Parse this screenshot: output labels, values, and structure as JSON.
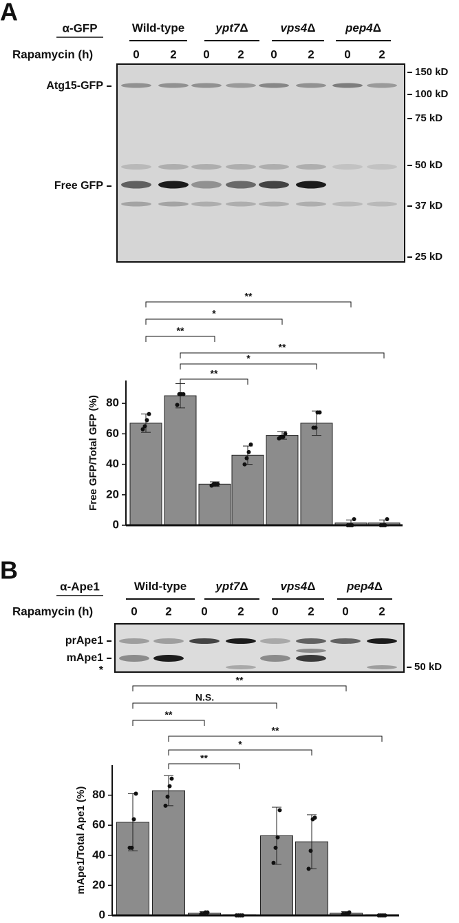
{
  "panels": [
    {
      "label": "A",
      "antibody": "α-GFP",
      "strains": [
        {
          "name": "Wild-type"
        },
        {
          "name": "ypt7",
          "suffix": "Δ"
        },
        {
          "name": "vps4",
          "suffix": "Δ"
        },
        {
          "name": "pep4",
          "suffix": "Δ"
        }
      ],
      "rapamycin_label": "Rapamycin (h)",
      "times": [
        0,
        2,
        0,
        2,
        0,
        2,
        0,
        2
      ],
      "bands": [
        "Atg15-GFP",
        "Free GFP"
      ],
      "markers": [
        "150 kD",
        "100 kD",
        "75 kD",
        "50 kD",
        "37 kD",
        "25 kD"
      ],
      "significance": [
        "**",
        "*",
        "**",
        "**",
        "*",
        "**"
      ]
    },
    {
      "label": "B",
      "antibody": "α-Ape1",
      "strains": [
        {
          "name": "Wild-type"
        },
        {
          "name": "ypt7",
          "suffix": "Δ"
        },
        {
          "name": "vps4",
          "suffix": "Δ"
        },
        {
          "name": "pep4",
          "suffix": "Δ"
        }
      ],
      "rapamycin_label": "Rapamycin (h)",
      "times": [
        0,
        2,
        0,
        2,
        0,
        2,
        0,
        2
      ],
      "bands": [
        "prApe1",
        "mApe1",
        "*"
      ],
      "markers": [
        "50 kD"
      ],
      "significance": [
        "**",
        "N.S.",
        "**",
        "**",
        "*",
        "**"
      ]
    }
  ],
  "chart_data": [
    {
      "type": "bar",
      "y_label": "Free GFP/Total GFP (%)",
      "color": "#8c8c8c",
      "categories": [
        null,
        null,
        null,
        null,
        null,
        null,
        null,
        null
      ],
      "values": [
        67,
        85,
        27,
        46,
        59,
        67,
        1.5,
        1.5
      ],
      "errors": [
        6,
        8,
        1.5,
        6,
        2.5,
        8,
        2,
        2
      ],
      "points": [
        [
          63,
          65,
          69,
          73
        ],
        [
          79,
          86,
          86,
          86
        ],
        [
          26,
          27,
          27,
          27
        ],
        [
          40,
          44,
          48,
          53
        ],
        [
          57,
          58,
          58,
          60
        ],
        [
          64,
          64,
          74,
          74
        ],
        [
          0,
          0,
          0,
          4
        ],
        [
          0,
          0,
          0,
          4
        ]
      ],
      "ylim": [
        0,
        95
      ],
      "yticks": [
        0,
        20,
        40,
        60,
        80
      ]
    },
    {
      "type": "bar",
      "y_label": "mApe1/Total Ape1 (%)",
      "color": "#8c8c8c",
      "categories": [
        null,
        null,
        null,
        null,
        null,
        null,
        null,
        null
      ],
      "values": [
        62,
        83,
        1.5,
        0.5,
        53,
        49,
        1.5,
        0.5
      ],
      "errors": [
        19,
        10,
        1,
        0,
        19,
        18,
        1,
        0
      ],
      "points": [
        [
          45,
          45,
          64,
          81
        ],
        [
          73,
          79,
          86,
          91
        ],
        [
          1,
          1,
          2,
          2
        ],
        [
          0,
          0,
          0,
          0
        ],
        [
          35,
          45,
          52,
          70
        ],
        [
          31,
          43,
          64,
          65
        ],
        [
          1,
          1,
          1,
          2
        ],
        [
          0,
          0,
          0,
          0
        ]
      ],
      "ylim": [
        0,
        100
      ],
      "yticks": [
        0,
        20,
        40,
        60,
        80
      ]
    }
  ]
}
